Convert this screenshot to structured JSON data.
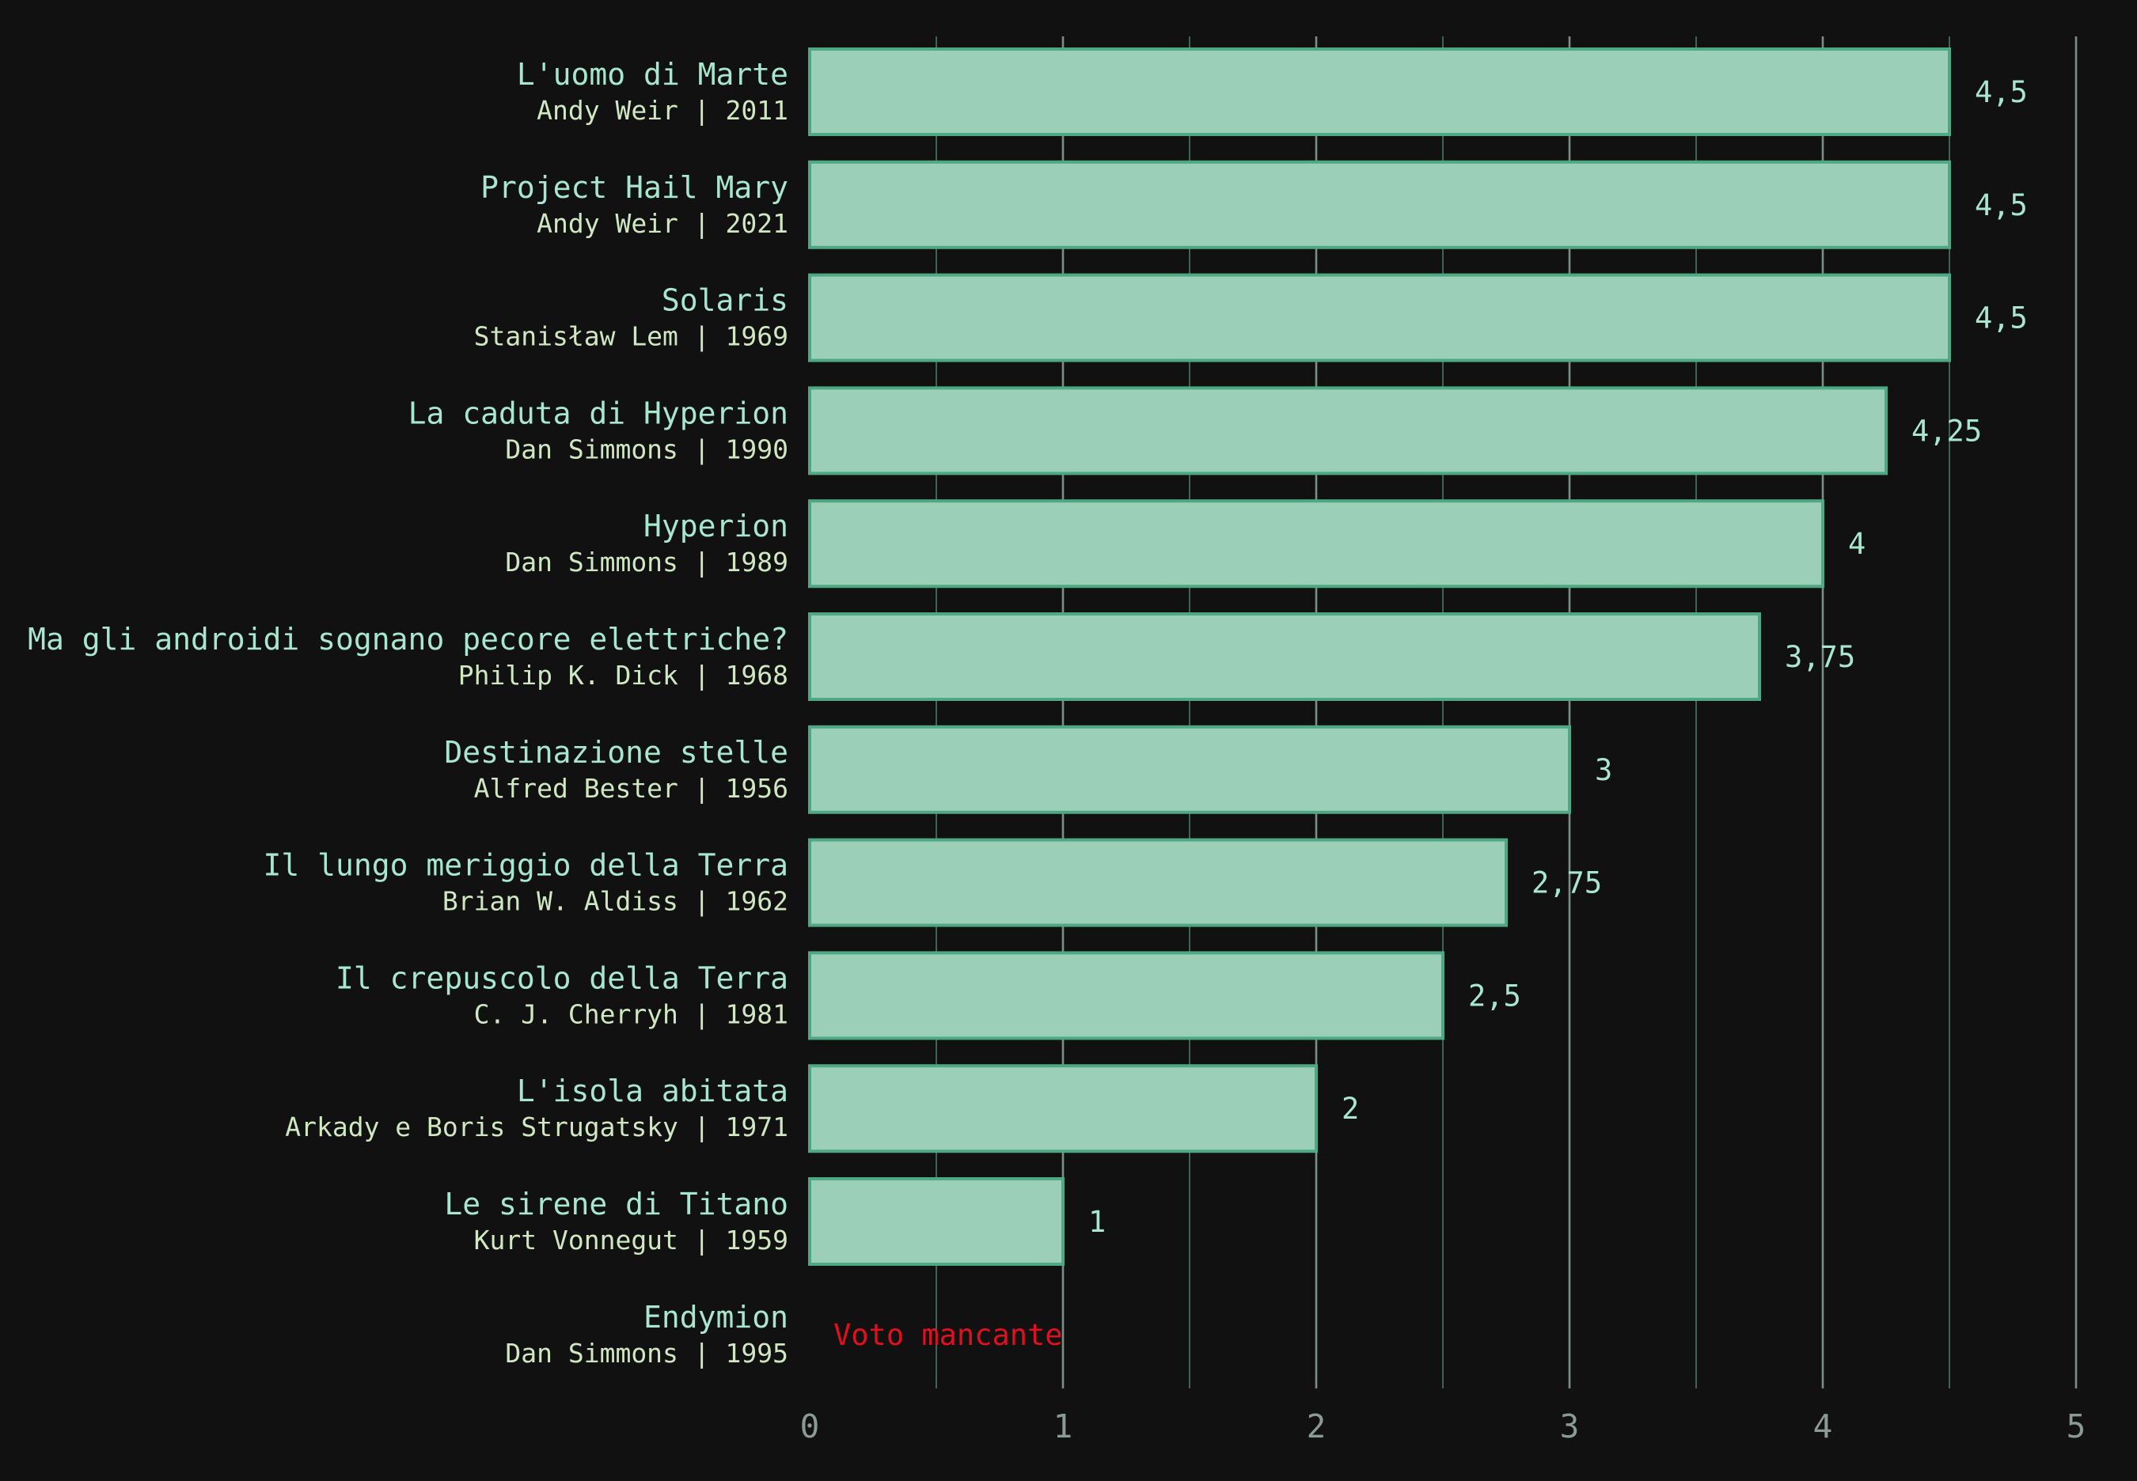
{
  "chart_data": {
    "type": "bar",
    "orientation": "horizontal",
    "xlim": [
      0,
      5
    ],
    "x_ticks": [
      {
        "value": 0,
        "label": "0"
      },
      {
        "value": 1,
        "label": "1"
      },
      {
        "value": 2,
        "label": "2"
      },
      {
        "value": 3,
        "label": "3"
      },
      {
        "value": 4,
        "label": "4"
      },
      {
        "value": 5,
        "label": "5"
      }
    ],
    "minor_grid": [
      0.5,
      1.5,
      2.5,
      3.5,
      4.5
    ],
    "grid": true,
    "colors": {
      "background": "#111111",
      "bar_fill": "#9ccfb8",
      "bar_edge": "#4ea883",
      "title_text": "#a8e6cf",
      "subtitle_text": "#cfe8c1",
      "missing_text": "#e0101e",
      "tick_text": "#8a9a94"
    },
    "items": [
      {
        "title": "L'uomo di Marte",
        "subtitle": "Andy Weir | 2011",
        "value": 4.5,
        "label": "4,5"
      },
      {
        "title": "Project Hail Mary",
        "subtitle": "Andy Weir | 2021",
        "value": 4.5,
        "label": "4,5"
      },
      {
        "title": "Solaris",
        "subtitle": "Stanisław Lem | 1969",
        "value": 4.5,
        "label": "4,5"
      },
      {
        "title": "La caduta di Hyperion",
        "subtitle": "Dan Simmons | 1990",
        "value": 4.25,
        "label": "4,25"
      },
      {
        "title": "Hyperion",
        "subtitle": "Dan Simmons | 1989",
        "value": 4,
        "label": "4"
      },
      {
        "title": "Ma gli androidi sognano pecore elettriche?",
        "subtitle": "Philip K. Dick | 1968",
        "value": 3.75,
        "label": "3,75"
      },
      {
        "title": "Destinazione stelle",
        "subtitle": "Alfred Bester | 1956",
        "value": 3,
        "label": "3"
      },
      {
        "title": "Il lungo meriggio della Terra",
        "subtitle": "Brian W. Aldiss | 1962",
        "value": 2.75,
        "label": "2,75"
      },
      {
        "title": "Il crepuscolo della Terra",
        "subtitle": "C. J. Cherryh | 1981",
        "value": 2.5,
        "label": "2,5"
      },
      {
        "title": "L'isola abitata",
        "subtitle": "Arkady e Boris Strugatsky | 1971",
        "value": 2,
        "label": "2"
      },
      {
        "title": "Le sirene di Titano",
        "subtitle": "Kurt Vonnegut | 1959",
        "value": 1,
        "label": "1"
      },
      {
        "title": "Endymion",
        "subtitle": "Dan Simmons | 1995",
        "value": null,
        "label": "Voto mancante"
      }
    ]
  }
}
